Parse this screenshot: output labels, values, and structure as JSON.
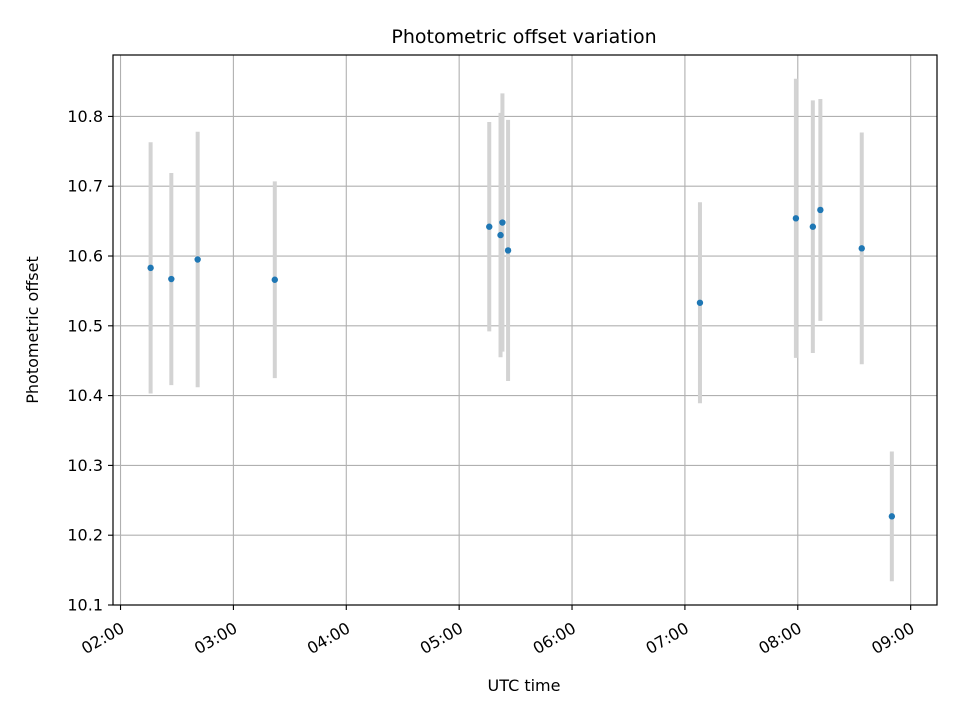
{
  "chart_data": {
    "type": "scatter",
    "title": "Photometric offset variation",
    "xlabel": "UTC time",
    "ylabel": "Photometric offset",
    "x_tick_labels": [
      "02:00",
      "03:00",
      "04:00",
      "05:00",
      "06:00",
      "07:00",
      "08:00",
      "09:00"
    ],
    "x_ticks_hours": [
      2,
      3,
      4,
      5,
      6,
      7,
      8,
      9
    ],
    "y_tick_labels": [
      "10.1",
      "10.2",
      "10.3",
      "10.4",
      "10.5",
      "10.6",
      "10.7",
      "10.8"
    ],
    "y_ticks": [
      10.1,
      10.2,
      10.3,
      10.4,
      10.5,
      10.6,
      10.7,
      10.8
    ],
    "xlim": [
      "01:56",
      "09:14"
    ],
    "ylim": [
      10.1,
      10.888
    ],
    "grid": true,
    "series": [
      {
        "marker_color": "#1f77b4",
        "errorbar_color": "#d3d3d3",
        "points": [
          {
            "time": "02:16",
            "y": 10.583,
            "yerr": 0.18
          },
          {
            "time": "02:27",
            "y": 10.567,
            "yerr": 0.152
          },
          {
            "time": "02:41",
            "y": 10.595,
            "yerr": 0.183
          },
          {
            "time": "03:22",
            "y": 10.566,
            "yerr": 0.141
          },
          {
            "time": "05:16",
            "y": 10.642,
            "yerr": 0.15
          },
          {
            "time": "05:22",
            "y": 10.63,
            "yerr": 0.175
          },
          {
            "time": "05:23",
            "y": 10.648,
            "yerr": 0.185
          },
          {
            "time": "05:26",
            "y": 10.608,
            "yerr": 0.187
          },
          {
            "time": "07:08",
            "y": 10.533,
            "yerr": 0.144
          },
          {
            "time": "07:59",
            "y": 10.654,
            "yerr": 0.2
          },
          {
            "time": "08:08",
            "y": 10.642,
            "yerr": 0.181
          },
          {
            "time": "08:12",
            "y": 10.666,
            "yerr": 0.159
          },
          {
            "time": "08:34",
            "y": 10.611,
            "yerr": 0.166
          },
          {
            "time": "08:50",
            "y": 10.227,
            "yerr": 0.093
          }
        ]
      }
    ]
  }
}
